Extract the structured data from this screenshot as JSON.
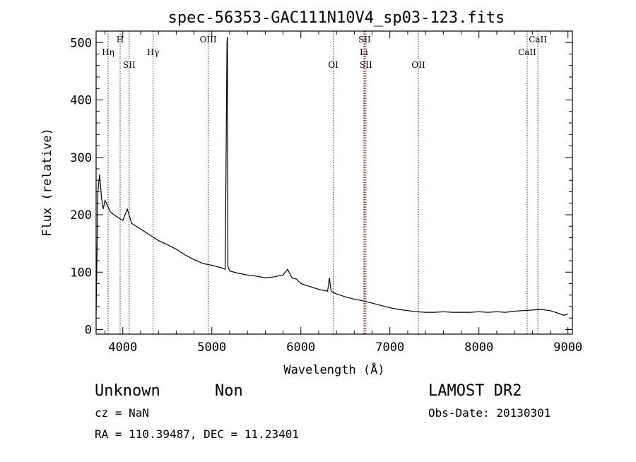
{
  "chart_data": {
    "type": "line",
    "title": "spec-56353-GAC111N10V4_sp03-123.fits",
    "xlabel": "Wavelength (Å)",
    "ylabel": "Flux (relative)",
    "xlim": [
      3700,
      9050
    ],
    "ylim": [
      -8,
      520
    ],
    "xticks": [
      4000,
      5000,
      6000,
      7000,
      8000,
      9000
    ],
    "yticks": [
      0,
      100,
      200,
      300,
      400,
      500
    ],
    "grid": false,
    "legend": "none",
    "series_color": "#000000",
    "line_marker_color": "#8b0000",
    "spectrum": {
      "x": [
        3700,
        3720,
        3740,
        3760,
        3780,
        3800,
        3830,
        3860,
        3900,
        3950,
        4000,
        4050,
        4100,
        4150,
        4200,
        4300,
        4400,
        4500,
        4600,
        4700,
        4800,
        4900,
        5000,
        5100,
        5150,
        5170,
        5175,
        5180,
        5200,
        5300,
        5400,
        5500,
        5600,
        5700,
        5800,
        5850,
        5900,
        5950,
        6000,
        6100,
        6200,
        6300,
        6320,
        6340,
        6360,
        6400,
        6500,
        6600,
        6700,
        6800,
        6900,
        7000,
        7100,
        7200,
        7300,
        7400,
        7500,
        7600,
        7700,
        7800,
        7900,
        8000,
        8100,
        8200,
        8300,
        8400,
        8500,
        8600,
        8700,
        8800,
        8900,
        8950,
        9000
      ],
      "y": [
        25,
        240,
        270,
        230,
        210,
        225,
        215,
        205,
        200,
        195,
        190,
        210,
        185,
        180,
        175,
        165,
        155,
        148,
        140,
        130,
        122,
        115,
        112,
        108,
        105,
        500,
        510,
        110,
        102,
        98,
        95,
        93,
        90,
        92,
        95,
        105,
        90,
        88,
        80,
        75,
        70,
        67,
        90,
        67,
        65,
        62,
        57,
        53,
        50,
        46,
        42,
        38,
        35,
        33,
        31,
        30,
        30,
        31,
        30,
        30,
        30,
        31,
        30,
        31,
        30,
        32,
        33,
        34,
        35,
        33,
        28,
        25,
        27
      ]
    },
    "spectral_lines": [
      {
        "label": "Hη",
        "x": 3835,
        "row": 1
      },
      {
        "label": "H",
        "x": 3970,
        "row": 0
      },
      {
        "label": "SII",
        "x": 4072,
        "row": 2
      },
      {
        "label": "Hγ",
        "x": 4340,
        "row": 1
      },
      {
        "label": "OIII",
        "x": 4959,
        "row": 0
      },
      {
        "label": "OI",
        "x": 6364,
        "row": 2
      },
      {
        "label": "SII",
        "x": 6716,
        "row": 0
      },
      {
        "label": "Li",
        "x": 6708,
        "row": 1
      },
      {
        "label": "SII",
        "x": 6731,
        "row": 2
      },
      {
        "label": "OII",
        "x": 7320,
        "row": 2
      },
      {
        "label": "CaII",
        "x": 8542,
        "row": 1
      },
      {
        "label": "CaII",
        "x": 8662,
        "row": 0
      }
    ]
  },
  "footer": {
    "object_class": "Unknown",
    "subclass": "Non",
    "survey": "LAMOST DR2",
    "redshift": "cz = NaN",
    "obs_date": "Obs-Date: 20130301",
    "coords": "RA = 110.39487, DEC =  11.23401"
  }
}
